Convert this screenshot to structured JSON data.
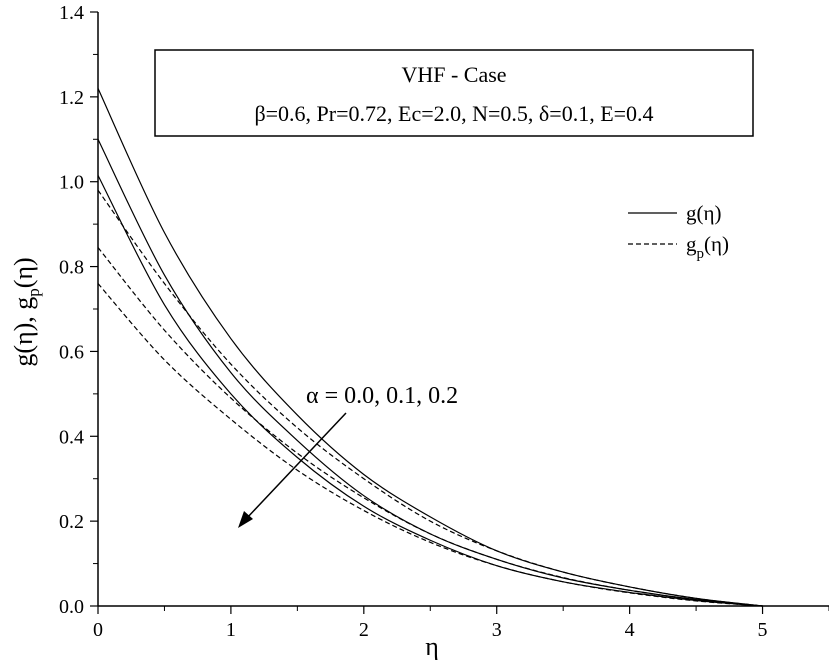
{
  "chart_data": {
    "type": "line",
    "xlabel": "η",
    "ylabel": {
      "main": "g(η), g",
      "sub": "p",
      "tail": "(η)"
    },
    "xlim": [
      0,
      5.5
    ],
    "ylim": [
      0,
      1.4
    ],
    "xticks": [
      "0",
      "1",
      "2",
      "3",
      "4",
      "5"
    ],
    "yticks": [
      "0.0",
      "0.2",
      "0.4",
      "0.6",
      "0.8",
      "1.0",
      "1.2",
      "1.4"
    ],
    "grid": false,
    "info_box": {
      "line1": "VHF - Case",
      "line2": "β=0.6, Pr=0.72, Ec=2.0, N=0.5, δ=0.1, E=0.4"
    },
    "legend": {
      "position": "right",
      "solid": {
        "main": "g(η)"
      },
      "dashed": {
        "main": "g",
        "sub": "p",
        "tail": "(η)"
      }
    },
    "annotation": {
      "text": "α = 0.0, 0.1, 0.2"
    },
    "series": [
      {
        "style": "solid",
        "y0": 1.22,
        "x": [
          0,
          0.5,
          1,
          1.5,
          2,
          2.5,
          3,
          3.5,
          4,
          4.5,
          5
        ],
        "y": [
          1.22,
          0.88,
          0.63,
          0.45,
          0.31,
          0.21,
          0.13,
          0.08,
          0.045,
          0.018,
          0.0
        ]
      },
      {
        "style": "solid",
        "y0": 1.1,
        "x": [
          0,
          0.5,
          1,
          1.5,
          2,
          2.5,
          3,
          3.5,
          4,
          4.5,
          5
        ],
        "y": [
          1.1,
          0.78,
          0.55,
          0.39,
          0.26,
          0.17,
          0.11,
          0.066,
          0.037,
          0.015,
          0.0
        ]
      },
      {
        "style": "solid",
        "y0": 1.015,
        "x": [
          0,
          0.5,
          1,
          1.5,
          2,
          2.5,
          3,
          3.5,
          4,
          4.5,
          5
        ],
        "y": [
          1.015,
          0.71,
          0.5,
          0.35,
          0.235,
          0.155,
          0.095,
          0.057,
          0.032,
          0.013,
          0.0
        ]
      },
      {
        "style": "dashed",
        "y0": 0.98,
        "x": [
          0,
          0.5,
          1,
          1.5,
          2,
          2.5,
          3,
          3.5,
          4,
          4.5,
          5
        ],
        "y": [
          0.98,
          0.76,
          0.57,
          0.42,
          0.3,
          0.2,
          0.13,
          0.08,
          0.045,
          0.018,
          0.0
        ]
      },
      {
        "style": "dashed",
        "y0": 0.845,
        "x": [
          0,
          0.5,
          1,
          1.5,
          2,
          2.5,
          3,
          3.5,
          4,
          4.5,
          5
        ],
        "y": [
          0.845,
          0.65,
          0.49,
          0.36,
          0.255,
          0.17,
          0.11,
          0.067,
          0.037,
          0.015,
          0.0
        ]
      },
      {
        "style": "dashed",
        "y0": 0.76,
        "x": [
          0,
          0.5,
          1,
          1.5,
          2,
          2.5,
          3,
          3.5,
          4,
          4.5,
          5
        ],
        "y": [
          0.76,
          0.58,
          0.44,
          0.32,
          0.225,
          0.15,
          0.095,
          0.057,
          0.031,
          0.012,
          0.0
        ]
      }
    ]
  }
}
